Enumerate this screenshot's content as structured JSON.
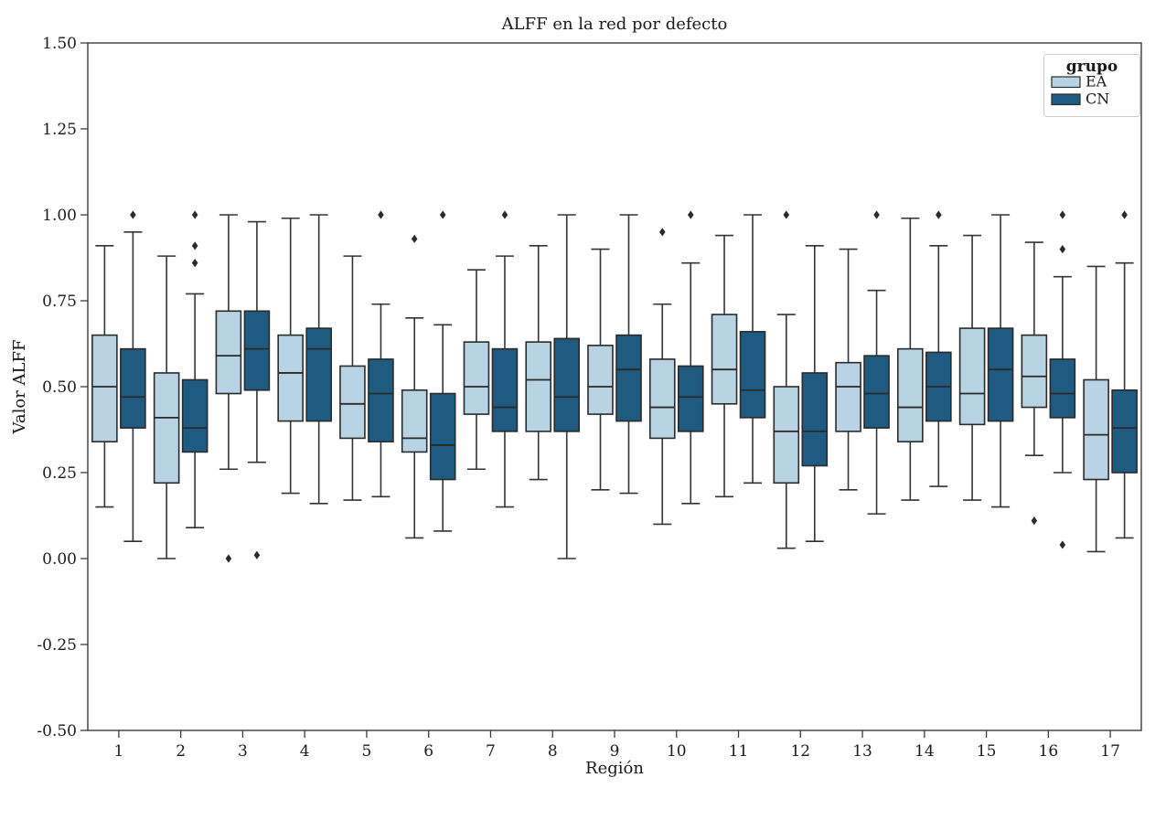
{
  "chart_data": {
    "type": "grouped_boxplot",
    "title": "ALFF en la red por defecto",
    "xlabel": "Región",
    "ylabel": "Valor ALFF",
    "ylim": [
      -0.5,
      1.5
    ],
    "grid": false,
    "ytick_labels": [
      "1.50",
      "1.25",
      "1.00",
      "0.75",
      "0.50",
      "0.25",
      "0.00",
      "-0.25",
      "-0.50"
    ],
    "ytick_values": [
      1.5,
      1.25,
      1.0,
      0.75,
      0.5,
      0.25,
      0.0,
      -0.25,
      -0.5
    ],
    "categories": [
      "1",
      "2",
      "3",
      "4",
      "5",
      "6",
      "7",
      "8",
      "9",
      "10",
      "11",
      "12",
      "13",
      "14",
      "15",
      "16",
      "17"
    ],
    "legend": {
      "title": "grupo",
      "position": "upper-right"
    },
    "colors": {
      "edge": "#2a2a2a",
      "whisker": "#333333",
      "outlier": "#2b2b2b",
      "spine": "#3b3b3b",
      "legend_border": "#cccccc"
    },
    "series": [
      {
        "name": "EA",
        "color": "#b8d3e4",
        "boxes": [
          {
            "lo": 0.15,
            "q1": 0.34,
            "med": 0.5,
            "q3": 0.65,
            "hi": 0.91,
            "outliers": []
          },
          {
            "lo": 0.0,
            "q1": 0.22,
            "med": 0.41,
            "q3": 0.54,
            "hi": 0.88,
            "outliers": []
          },
          {
            "lo": 0.26,
            "q1": 0.48,
            "med": 0.59,
            "q3": 0.72,
            "hi": 1.0,
            "outliers": [
              0.0
            ]
          },
          {
            "lo": 0.19,
            "q1": 0.4,
            "med": 0.54,
            "q3": 0.65,
            "hi": 0.99,
            "outliers": []
          },
          {
            "lo": 0.17,
            "q1": 0.35,
            "med": 0.45,
            "q3": 0.56,
            "hi": 0.88,
            "outliers": []
          },
          {
            "lo": 0.06,
            "q1": 0.31,
            "med": 0.35,
            "q3": 0.49,
            "hi": 0.7,
            "outliers": [
              0.93
            ]
          },
          {
            "lo": 0.26,
            "q1": 0.42,
            "med": 0.5,
            "q3": 0.63,
            "hi": 0.84,
            "outliers": []
          },
          {
            "lo": 0.23,
            "q1": 0.37,
            "med": 0.52,
            "q3": 0.63,
            "hi": 0.91,
            "outliers": []
          },
          {
            "lo": 0.2,
            "q1": 0.42,
            "med": 0.5,
            "q3": 0.62,
            "hi": 0.9,
            "outliers": []
          },
          {
            "lo": 0.1,
            "q1": 0.35,
            "med": 0.44,
            "q3": 0.58,
            "hi": 0.74,
            "outliers": [
              0.95
            ]
          },
          {
            "lo": 0.18,
            "q1": 0.45,
            "med": 0.55,
            "q3": 0.71,
            "hi": 0.94,
            "outliers": []
          },
          {
            "lo": 0.03,
            "q1": 0.22,
            "med": 0.37,
            "q3": 0.5,
            "hi": 0.71,
            "outliers": [
              1.0
            ]
          },
          {
            "lo": 0.2,
            "q1": 0.37,
            "med": 0.5,
            "q3": 0.57,
            "hi": 0.9,
            "outliers": []
          },
          {
            "lo": 0.17,
            "q1": 0.34,
            "med": 0.44,
            "q3": 0.61,
            "hi": 0.99,
            "outliers": []
          },
          {
            "lo": 0.17,
            "q1": 0.39,
            "med": 0.48,
            "q3": 0.67,
            "hi": 0.94,
            "outliers": []
          },
          {
            "lo": 0.3,
            "q1": 0.44,
            "med": 0.53,
            "q3": 0.65,
            "hi": 0.92,
            "outliers": [
              0.11
            ]
          },
          {
            "lo": 0.02,
            "q1": 0.23,
            "med": 0.36,
            "q3": 0.52,
            "hi": 0.85,
            "outliers": []
          }
        ]
      },
      {
        "name": "CN",
        "color": "#1f5a80",
        "boxes": [
          {
            "lo": 0.05,
            "q1": 0.38,
            "med": 0.47,
            "q3": 0.61,
            "hi": 0.95,
            "outliers": [
              1.0
            ]
          },
          {
            "lo": 0.09,
            "q1": 0.31,
            "med": 0.38,
            "q3": 0.52,
            "hi": 0.77,
            "outliers": [
              0.86,
              0.91,
              1.0
            ]
          },
          {
            "lo": 0.28,
            "q1": 0.49,
            "med": 0.61,
            "q3": 0.72,
            "hi": 0.98,
            "outliers": [
              0.01
            ]
          },
          {
            "lo": 0.16,
            "q1": 0.4,
            "med": 0.61,
            "q3": 0.67,
            "hi": 1.0,
            "outliers": []
          },
          {
            "lo": 0.18,
            "q1": 0.34,
            "med": 0.48,
            "q3": 0.58,
            "hi": 0.74,
            "outliers": [
              1.0
            ]
          },
          {
            "lo": 0.08,
            "q1": 0.23,
            "med": 0.33,
            "q3": 0.48,
            "hi": 0.68,
            "outliers": [
              1.0
            ]
          },
          {
            "lo": 0.15,
            "q1": 0.37,
            "med": 0.44,
            "q3": 0.61,
            "hi": 0.88,
            "outliers": [
              1.0
            ]
          },
          {
            "lo": 0.0,
            "q1": 0.37,
            "med": 0.47,
            "q3": 0.64,
            "hi": 1.0,
            "outliers": []
          },
          {
            "lo": 0.19,
            "q1": 0.4,
            "med": 0.55,
            "q3": 0.65,
            "hi": 1.0,
            "outliers": []
          },
          {
            "lo": 0.16,
            "q1": 0.37,
            "med": 0.47,
            "q3": 0.56,
            "hi": 0.86,
            "outliers": [
              1.0
            ]
          },
          {
            "lo": 0.22,
            "q1": 0.41,
            "med": 0.49,
            "q3": 0.66,
            "hi": 1.0,
            "outliers": []
          },
          {
            "lo": 0.05,
            "q1": 0.27,
            "med": 0.37,
            "q3": 0.54,
            "hi": 0.91,
            "outliers": []
          },
          {
            "lo": 0.13,
            "q1": 0.38,
            "med": 0.48,
            "q3": 0.59,
            "hi": 0.78,
            "outliers": [
              1.0
            ]
          },
          {
            "lo": 0.21,
            "q1": 0.4,
            "med": 0.5,
            "q3": 0.6,
            "hi": 0.91,
            "outliers": [
              1.0
            ]
          },
          {
            "lo": 0.15,
            "q1": 0.4,
            "med": 0.55,
            "q3": 0.67,
            "hi": 1.0,
            "outliers": []
          },
          {
            "lo": 0.25,
            "q1": 0.41,
            "med": 0.48,
            "q3": 0.58,
            "hi": 0.82,
            "outliers": [
              1.0,
              0.9,
              0.04
            ]
          },
          {
            "lo": 0.06,
            "q1": 0.25,
            "med": 0.38,
            "q3": 0.49,
            "hi": 0.86,
            "outliers": [
              1.0
            ]
          }
        ]
      }
    ]
  }
}
